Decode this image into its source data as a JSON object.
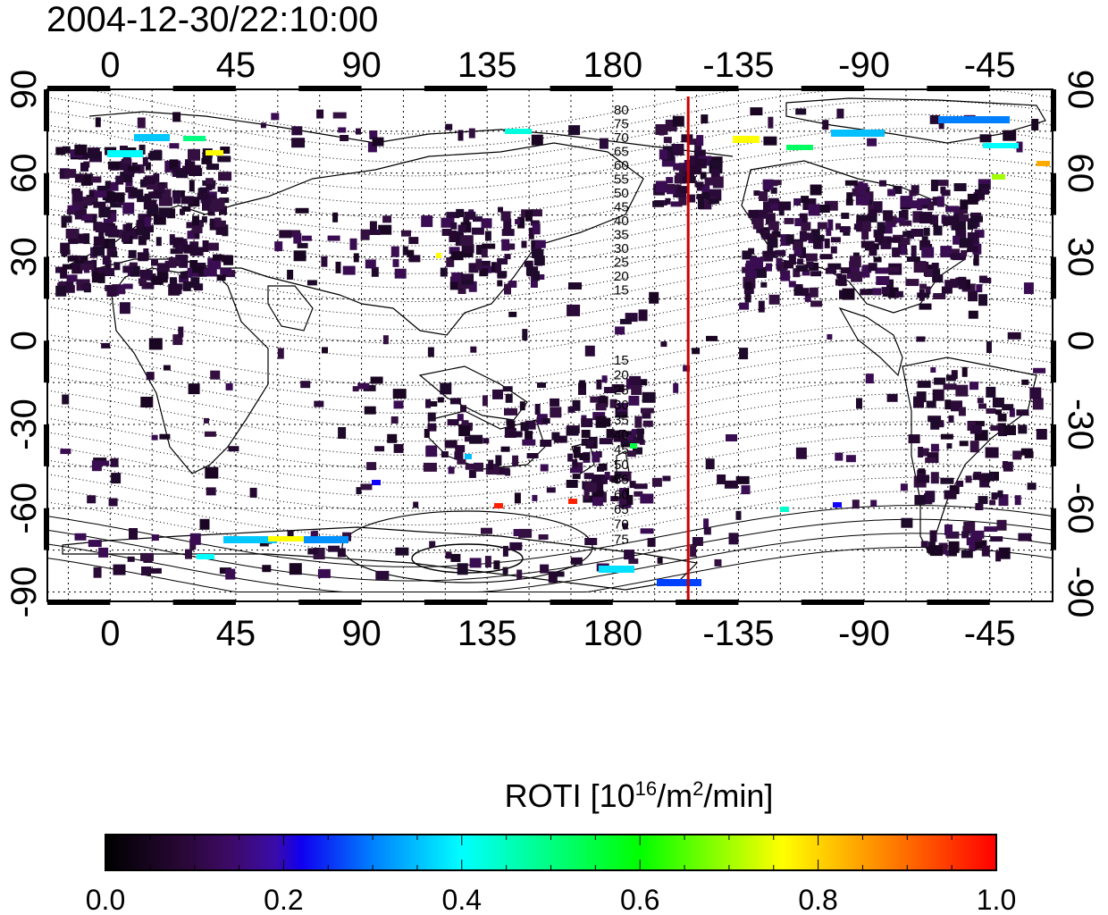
{
  "title": "2004-12-30/22:10:00",
  "map": {
    "top_lon_labels": [
      "0",
      "45",
      "90",
      "135",
      "180",
      "-135",
      "-90",
      "-45"
    ],
    "bottom_lon_labels": [
      "0",
      "45",
      "90",
      "135",
      "180",
      "-135",
      "-90",
      "-45"
    ],
    "left_lat_labels": [
      "90",
      "60",
      "30",
      "0",
      "-30",
      "-60",
      "-90"
    ],
    "right_lat_labels": [
      "90",
      "60",
      "30",
      "0",
      "-30",
      "-60",
      "-90"
    ],
    "north_contour_labels": [
      "80",
      "75",
      "70",
      "65",
      "60",
      "55",
      "50",
      "45",
      "40",
      "35",
      "30",
      "25",
      "20",
      "15"
    ],
    "south_contour_labels": [
      "15",
      "20",
      "25",
      "30",
      "35",
      "40",
      "45",
      "50",
      "55",
      "60",
      "65",
      "70",
      "75"
    ],
    "marker_line_lon": -153,
    "marker_line_color": "#cc0000"
  },
  "colorbar": {
    "label_prefix": "ROTI  [10",
    "label_exp1": "16",
    "label_mid": "/m",
    "label_exp2": "2",
    "label_suffix": "/min]",
    "min": 0.0,
    "max": 1.0,
    "tick_labels": [
      "0.0",
      "0.2",
      "0.4",
      "0.6",
      "0.8",
      "1.0"
    ],
    "colormap": [
      "#000000",
      "#3a0a55",
      "#4a0a8c",
      "#3010c8",
      "#0000ff",
      "#0090ff",
      "#00ffff",
      "#00ff80",
      "#00ff00",
      "#80ff00",
      "#ffff00",
      "#ff8000",
      "#ff0000"
    ]
  }
}
